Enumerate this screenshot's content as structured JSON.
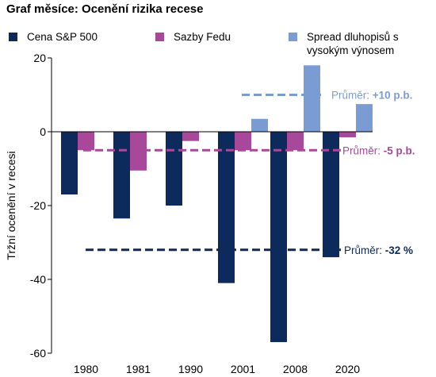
{
  "title": "Graf měsíce: Ocenění rizika recese",
  "chart_data": {
    "type": "bar",
    "categories": [
      "1980",
      "1981",
      "1990",
      "2001",
      "2008",
      "2020"
    ],
    "series": [
      {
        "name": "Cena S&P 500",
        "color": "#0d2a5c",
        "values": [
          -17,
          -23.5,
          -20,
          -41,
          -57,
          -34
        ]
      },
      {
        "name": "Sazby Fedu",
        "color": "#a8489a",
        "values": [
          -5,
          -10.5,
          -2.5,
          -5,
          -5,
          -1.5
        ]
      },
      {
        "name": "Spread dluhopisů s vysokým výnosem",
        "color": "#7b9cd3",
        "values": [
          null,
          null,
          null,
          3.5,
          18,
          7.5
        ]
      }
    ],
    "ylabel": "Tržní ocenění v recesi",
    "ylim": [
      -60,
      20
    ],
    "yticks": [
      "20",
      "0",
      "-20",
      "-40",
      "-60"
    ],
    "averages": [
      {
        "value": 10,
        "label": "Průměr: ",
        "label_value": "+10 p.b.",
        "color": "#7b9cd3"
      },
      {
        "value": -5,
        "label": "Průměr: ",
        "label_value": "-5 p.b.",
        "color": "#a8489a"
      },
      {
        "value": -32,
        "label": "Průměr: ",
        "label_value": "-32 %",
        "color": "#0d2a5c"
      }
    ],
    "legend_position": "top"
  }
}
